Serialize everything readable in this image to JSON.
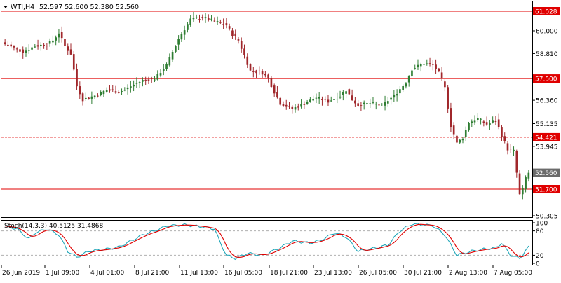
{
  "header": {
    "symbol": "WTI,H4",
    "ohlc": "52.597 52.600 52.380 52.560"
  },
  "indicator": {
    "label": "Stoch(14,3,3) 40.5125 31.4868",
    "levels": [
      {
        "value": 100,
        "label": "100"
      },
      {
        "value": 80,
        "label": "80"
      },
      {
        "value": 20,
        "label": "20"
      },
      {
        "value": 0,
        "label": "0"
      }
    ]
  },
  "colors": {
    "background": "#ffffff",
    "axis": "#000000",
    "bull": "#2e7d32",
    "bear": "#a0272b",
    "level_line": "#e00000",
    "level_box": "#e00000",
    "last_box": "#6b6b6b",
    "stoch_main": "#1fa6b8",
    "stoch_signal": "#e00000"
  },
  "chart_data": {
    "type": "candlestick",
    "symbol": "WTI",
    "timeframe": "H4",
    "y_ticks": [
      "61.028",
      "60.000",
      "58.810",
      "57.500",
      "56.360",
      "55.135",
      "53.945",
      "52.560",
      "51.700",
      "50.305"
    ],
    "y_tick_values": [
      61.028,
      60.0,
      58.81,
      57.5,
      56.36,
      55.135,
      53.945,
      52.56,
      51.7,
      50.305
    ],
    "ylim": [
      50.0,
      61.5
    ],
    "x_ticks": [
      "26 Jun 2019",
      "1 Jul 09:00",
      "4 Jul 01:00",
      "8 Jul 21:00",
      "11 Jul 13:00",
      "16 Jul 05:00",
      "18 Jul 21:00",
      "23 Jul 13:00",
      "26 Jul 05:00",
      "30 Jul 21:00",
      "2 Aug 13:00",
      "7 Aug 05:00"
    ],
    "levels": [
      {
        "value": 61.028,
        "label": "61.028",
        "style": "solid"
      },
      {
        "value": 57.5,
        "label": "57.500",
        "style": "solid"
      },
      {
        "value": 54.421,
        "label": "54.421",
        "style": "dashed"
      },
      {
        "value": 51.7,
        "label": "51.700",
        "style": "solid"
      }
    ],
    "last_price": {
      "value": 52.56,
      "label": "52.560"
    },
    "waypoints": [
      [
        0,
        59.3
      ],
      [
        6,
        58.9
      ],
      [
        10,
        59.2
      ],
      [
        14,
        59.3
      ],
      [
        16,
        59.5
      ],
      [
        18,
        59.9
      ],
      [
        20,
        59.2
      ],
      [
        22,
        58.8
      ],
      [
        24,
        57.1
      ],
      [
        26,
        56.4
      ],
      [
        30,
        56.6
      ],
      [
        34,
        56.9
      ],
      [
        38,
        56.8
      ],
      [
        40,
        56.9
      ],
      [
        42,
        57.1
      ],
      [
        46,
        57.4
      ],
      [
        50,
        57.5
      ],
      [
        54,
        58.2
      ],
      [
        58,
        59.6
      ],
      [
        62,
        60.6
      ],
      [
        66,
        60.7
      ],
      [
        70,
        60.5
      ],
      [
        74,
        60.3
      ],
      [
        76,
        59.8
      ],
      [
        78,
        59.5
      ],
      [
        82,
        57.9
      ],
      [
        86,
        57.8
      ],
      [
        88,
        57.5
      ],
      [
        90,
        56.8
      ],
      [
        92,
        56.2
      ],
      [
        96,
        55.9
      ],
      [
        100,
        56.2
      ],
      [
        104,
        56.5
      ],
      [
        108,
        56.3
      ],
      [
        112,
        56.6
      ],
      [
        114,
        56.9
      ],
      [
        116,
        56.4
      ],
      [
        118,
        56.1
      ],
      [
        122,
        56.2
      ],
      [
        126,
        56.1
      ],
      [
        130,
        56.6
      ],
      [
        134,
        57.3
      ],
      [
        136,
        58.0
      ],
      [
        140,
        58.3
      ],
      [
        143,
        58.2
      ],
      [
        145,
        57.8
      ],
      [
        147,
        57.0
      ],
      [
        149,
        55.0
      ],
      [
        151,
        54.1
      ],
      [
        153,
        54.4
      ],
      [
        155,
        55.2
      ],
      [
        158,
        55.4
      ],
      [
        161,
        55.1
      ],
      [
        164,
        55.3
      ],
      [
        166,
        54.5
      ],
      [
        168,
        53.8
      ],
      [
        170,
        53.7
      ],
      [
        172,
        51.4
      ],
      [
        173,
        51.7
      ],
      [
        174,
        52.3
      ],
      [
        175,
        52.56
      ]
    ],
    "stoch_waypoints": [
      [
        0,
        92
      ],
      [
        4,
        85
      ],
      [
        8,
        60
      ],
      [
        10,
        75
      ],
      [
        14,
        85
      ],
      [
        18,
        70
      ],
      [
        21,
        30
      ],
      [
        24,
        15
      ],
      [
        28,
        30
      ],
      [
        34,
        35
      ],
      [
        38,
        40
      ],
      [
        42,
        55
      ],
      [
        46,
        70
      ],
      [
        50,
        80
      ],
      [
        54,
        92
      ],
      [
        60,
        95
      ],
      [
        66,
        90
      ],
      [
        70,
        85
      ],
      [
        72,
        50
      ],
      [
        74,
        20
      ],
      [
        77,
        12
      ],
      [
        81,
        25
      ],
      [
        86,
        20
      ],
      [
        91,
        35
      ],
      [
        96,
        55
      ],
      [
        102,
        50
      ],
      [
        106,
        58
      ],
      [
        110,
        75
      ],
      [
        114,
        65
      ],
      [
        118,
        30
      ],
      [
        122,
        35
      ],
      [
        128,
        45
      ],
      [
        132,
        80
      ],
      [
        136,
        97
      ],
      [
        143,
        93
      ],
      [
        147,
        70
      ],
      [
        151,
        20
      ],
      [
        156,
        30
      ],
      [
        160,
        35
      ],
      [
        164,
        38
      ],
      [
        166,
        50
      ],
      [
        169,
        20
      ],
      [
        172,
        12
      ],
      [
        175,
        40.5
      ]
    ],
    "stoch_main_last": 40.5125,
    "stoch_signal_last": 31.4868
  }
}
